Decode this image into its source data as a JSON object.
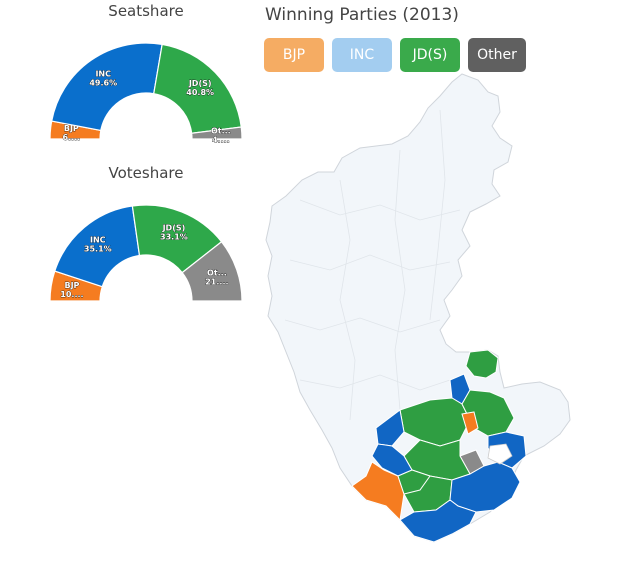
{
  "seatshare": {
    "title": "Seatshare",
    "slices": [
      {
        "label": "BJP",
        "value_label": "6....",
        "color": "#f57c20"
      },
      {
        "label": "INC",
        "value_label": "49.6%",
        "color": "#0a6fcc"
      },
      {
        "label": "JD(S)",
        "value_label": "40.8%",
        "color": "#2ea84a"
      },
      {
        "label": "Ot...",
        "value_label": "4....",
        "color": "#8a8a8a"
      }
    ]
  },
  "voteshare": {
    "title": "Voteshare",
    "slices": [
      {
        "label": "BJP",
        "value_label": "10....",
        "color": "#f57c20"
      },
      {
        "label": "INC",
        "value_label": "35.1%",
        "color": "#0a6fcc"
      },
      {
        "label": "JD(S)",
        "value_label": "33.1%",
        "color": "#2ea84a"
      },
      {
        "label": "Ot...",
        "value_label": "21....",
        "color": "#8a8a8a"
      }
    ]
  },
  "chart_data": [
    {
      "type": "pie",
      "title": "Seatshare",
      "categories": [
        "BJP",
        "INC",
        "JD(S)",
        "Other"
      ],
      "values": [
        6,
        49.6,
        40.8,
        4
      ]
    },
    {
      "type": "pie",
      "title": "Voteshare",
      "categories": [
        "BJP",
        "INC",
        "JD(S)",
        "Other"
      ],
      "values": [
        10,
        35.1,
        33.1,
        21
      ]
    }
  ],
  "map": {
    "title": "Winning Parties (2013)",
    "legend": [
      {
        "label": "BJP",
        "color": "#f5ac63"
      },
      {
        "label": "INC",
        "color": "#a3cdf0"
      },
      {
        "label": "JD(S)",
        "color": "#3aaa4b"
      },
      {
        "label": "Other",
        "color": "#606060"
      }
    ]
  }
}
